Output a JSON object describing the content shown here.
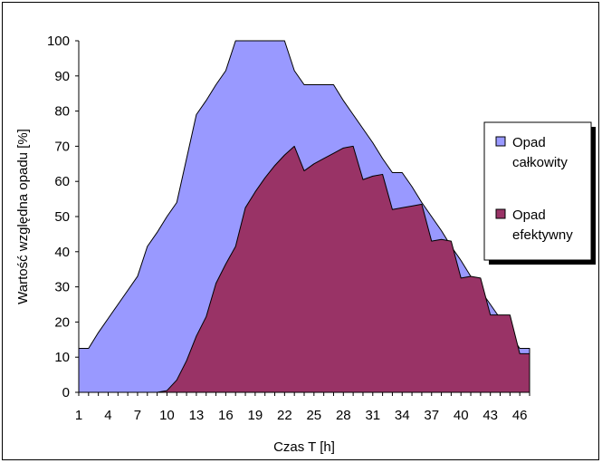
{
  "chart_data": {
    "type": "area",
    "xlabel": "Czas T [h]",
    "ylabel": "Wartość względna opadu [%]",
    "x_tick_labels": [
      "1",
      "4",
      "7",
      "10",
      "13",
      "16",
      "19",
      "22",
      "25",
      "28",
      "31",
      "34",
      "37",
      "40",
      "43",
      "46"
    ],
    "ylim": [
      0,
      100
    ],
    "y_ticks": [
      0,
      10,
      20,
      30,
      40,
      50,
      60,
      70,
      80,
      90,
      100
    ],
    "grid": false,
    "legend_placement": "right",
    "series": [
      {
        "name": "Opad całkowity",
        "color": "#9999ff",
        "values": [
          12.5,
          12.5,
          17,
          21,
          25,
          29,
          33,
          41.5,
          45.5,
          50,
          54,
          66.5,
          79,
          83,
          87.5,
          91.5,
          100,
          100,
          100,
          100,
          100,
          100,
          91.5,
          87.5,
          87.5,
          87.5,
          87.5,
          83,
          79,
          75,
          71,
          66.5,
          62.5,
          62.5,
          58.5,
          54,
          50,
          46,
          41.5,
          37.5,
          33,
          29,
          25,
          21,
          16.5,
          12.5,
          12.5
        ]
      },
      {
        "name": "Opad efektywny",
        "color": "#993366",
        "values": [
          0,
          0,
          0,
          0,
          0,
          0,
          0,
          0,
          0,
          0.5,
          3.5,
          9,
          16,
          21.5,
          31,
          36.5,
          41.5,
          52.5,
          57,
          61,
          64.5,
          67.5,
          70,
          63,
          65,
          66.5,
          68,
          69.5,
          70,
          60.5,
          61.5,
          62,
          52,
          52.5,
          53,
          53.5,
          43,
          43.5,
          43,
          32.5,
          33,
          32.5,
          22,
          22,
          22,
          11,
          11
        ]
      }
    ]
  }
}
